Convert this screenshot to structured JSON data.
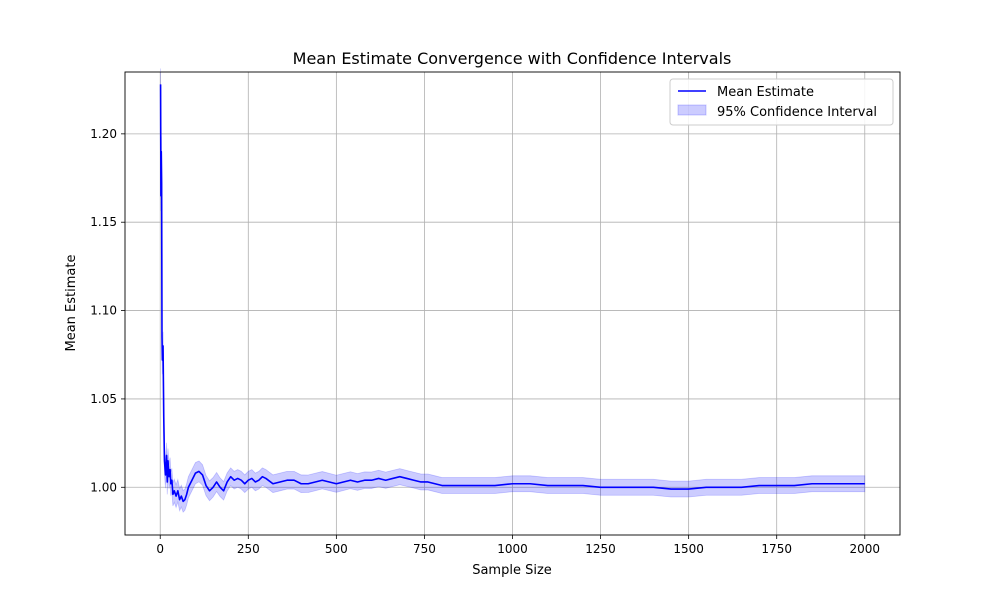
{
  "chart_data": {
    "type": "line",
    "title": "Mean Estimate Convergence with Confidence Intervals",
    "xlabel": "Sample Size",
    "ylabel": "Mean Estimate",
    "xlim": [
      -100,
      2100
    ],
    "ylim": [
      0.973,
      1.235
    ],
    "xticks": [
      0,
      250,
      500,
      750,
      1000,
      1250,
      1500,
      1750,
      2000
    ],
    "xtick_labels": [
      "0",
      "250",
      "500",
      "750",
      "1000",
      "1250",
      "1500",
      "1750",
      "2000"
    ],
    "yticks": [
      1.0,
      1.05,
      1.1,
      1.15,
      1.2
    ],
    "ytick_labels": [
      "1.00",
      "1.05",
      "1.10",
      "1.15",
      "1.20"
    ],
    "grid": true,
    "legend_position": "upper right",
    "legend": {
      "line_label": "Mean Estimate",
      "band_label": "95% Confidence Interval"
    },
    "series": [
      {
        "name": "Mean Estimate",
        "color": "#0000ff",
        "x": [
          1,
          2,
          3,
          4,
          5,
          6,
          8,
          10,
          12,
          15,
          18,
          20,
          22,
          25,
          28,
          30,
          33,
          36,
          40,
          45,
          50,
          55,
          60,
          65,
          70,
          75,
          80,
          90,
          100,
          110,
          120,
          130,
          140,
          150,
          160,
          170,
          180,
          190,
          200,
          210,
          220,
          230,
          240,
          250,
          260,
          270,
          280,
          290,
          300,
          320,
          340,
          360,
          380,
          400,
          420,
          440,
          460,
          480,
          500,
          520,
          540,
          560,
          580,
          600,
          620,
          640,
          660,
          680,
          700,
          720,
          740,
          760,
          780,
          800,
          850,
          900,
          950,
          1000,
          1050,
          1100,
          1150,
          1200,
          1250,
          1300,
          1350,
          1400,
          1450,
          1500,
          1550,
          1600,
          1650,
          1700,
          1750,
          1800,
          1850,
          1900,
          1950,
          2000
        ],
        "y": [
          1.228,
          1.165,
          1.19,
          1.172,
          1.085,
          1.072,
          1.08,
          1.04,
          1.015,
          1.007,
          1.018,
          1.003,
          1.015,
          1.006,
          1.01,
          1.002,
          1.004,
          0.996,
          0.998,
          0.995,
          0.998,
          0.993,
          0.995,
          0.992,
          0.993,
          0.996,
          1.0,
          1.004,
          1.008,
          1.009,
          1.007,
          1.001,
          0.998,
          1.0,
          1.003,
          1.0,
          0.998,
          1.003,
          1.006,
          1.004,
          1.005,
          1.004,
          1.002,
          1.004,
          1.005,
          1.003,
          1.004,
          1.006,
          1.005,
          1.002,
          1.003,
          1.004,
          1.004,
          1.002,
          1.002,
          1.003,
          1.004,
          1.003,
          1.002,
          1.003,
          1.004,
          1.003,
          1.004,
          1.004,
          1.005,
          1.004,
          1.005,
          1.006,
          1.005,
          1.004,
          1.003,
          1.003,
          1.002,
          1.001,
          1.001,
          1.001,
          1.001,
          1.002,
          1.002,
          1.001,
          1.001,
          1.001,
          1.0,
          1.0,
          1.0,
          1.0,
          0.999,
          0.999,
          1.0,
          1.0,
          1.0,
          1.001,
          1.001,
          1.001,
          1.002,
          1.002,
          1.002,
          1.002
        ]
      }
    ],
    "confidence_interval": {
      "label": "95% Confidence Interval",
      "color": "#0000ff",
      "alpha": 0.2,
      "half_width_x": [
        1,
        5,
        10,
        20,
        40,
        70,
        100,
        200,
        400,
        700,
        1000,
        1500,
        2000
      ],
      "half_width": [
        0.009,
        0.008,
        0.008,
        0.007,
        0.0065,
        0.006,
        0.006,
        0.005,
        0.005,
        0.0045,
        0.0045,
        0.0045,
        0.0045
      ]
    }
  }
}
